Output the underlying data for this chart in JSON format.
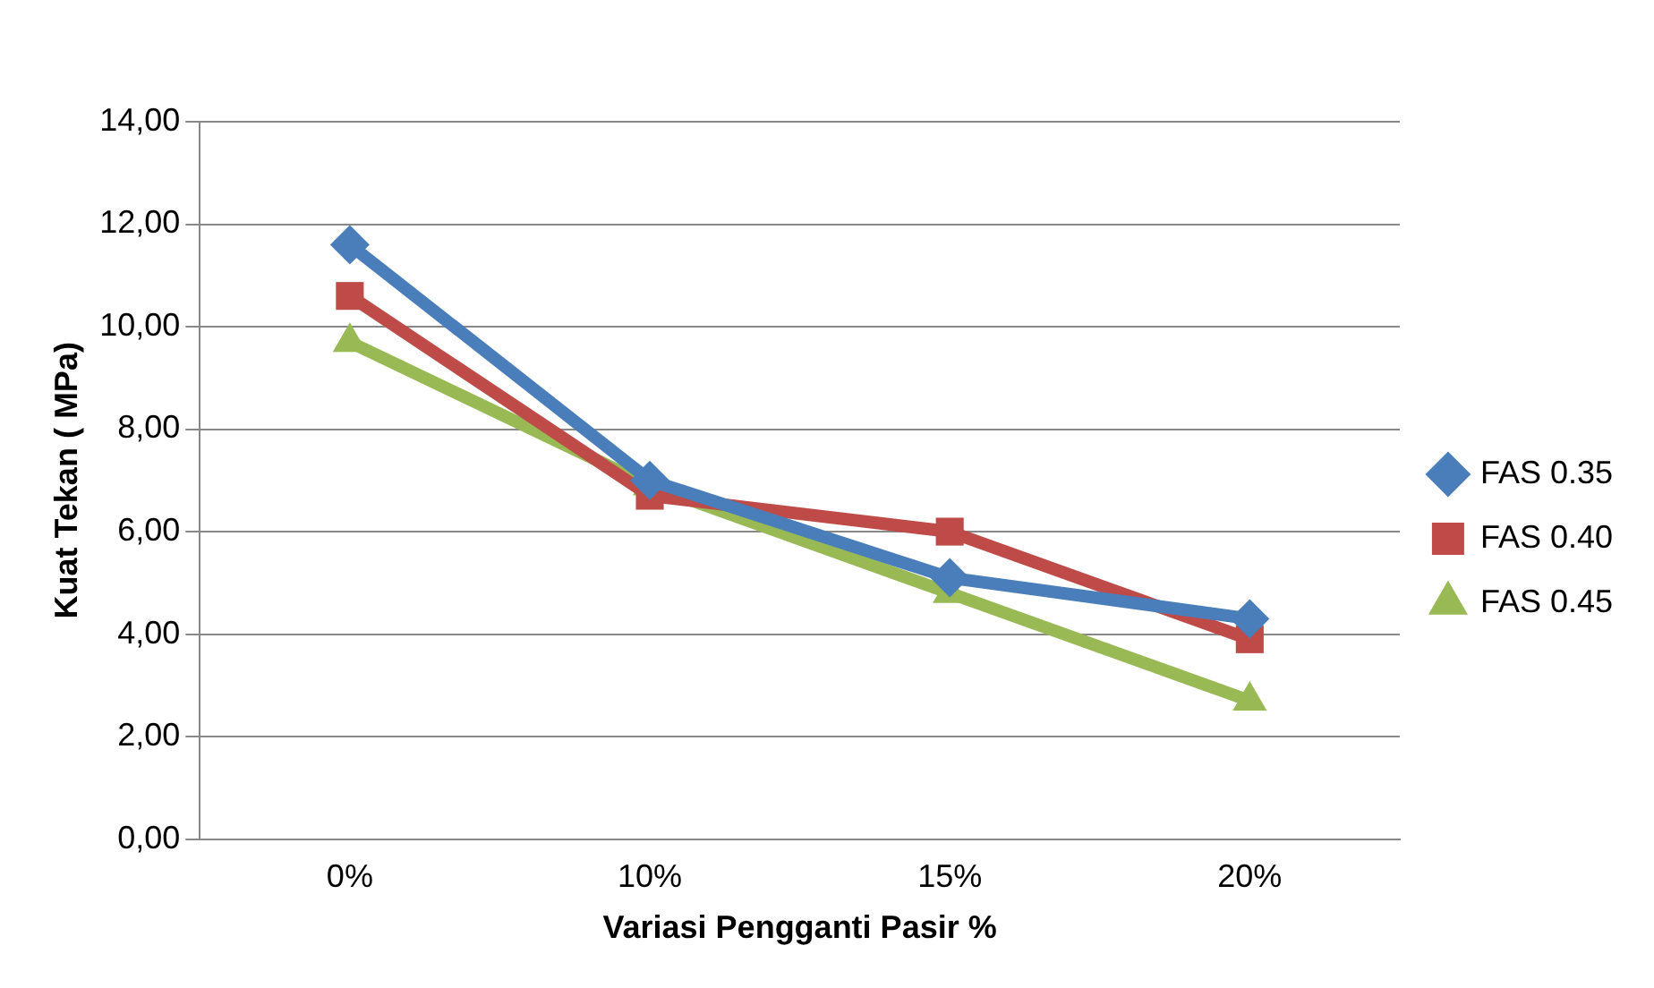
{
  "chart_data": {
    "type": "line",
    "xlabel": "Variasi Pengganti Pasir %",
    "ylabel": "Kuat Tekan ( MPa)",
    "categories": [
      "0%",
      "10%",
      "15%",
      "20%"
    ],
    "series": [
      {
        "name": "FAS 0.35",
        "color": "#4a7ebb",
        "marker": "diamond",
        "values": [
          11.6,
          7.0,
          5.1,
          4.3
        ]
      },
      {
        "name": "FAS 0.40",
        "color": "#be4b48",
        "marker": "square",
        "values": [
          10.6,
          6.7,
          6.0,
          3.9
        ]
      },
      {
        "name": "FAS 0.45",
        "color": "#98b954",
        "marker": "triangle",
        "values": [
          9.7,
          6.9,
          4.8,
          2.7
        ]
      }
    ],
    "ylim": [
      0,
      14
    ],
    "yticks": [
      {
        "value": 0,
        "label": "0,00"
      },
      {
        "value": 2,
        "label": "2,00"
      },
      {
        "value": 4,
        "label": "4,00"
      },
      {
        "value": 6,
        "label": "6,00"
      },
      {
        "value": 8,
        "label": "8,00"
      },
      {
        "value": 10,
        "label": "10,00"
      },
      {
        "value": 12,
        "label": "12,00"
      },
      {
        "value": 14,
        "label": "14,00"
      }
    ],
    "grid": "y",
    "legend": "right",
    "line_style": "solid"
  }
}
